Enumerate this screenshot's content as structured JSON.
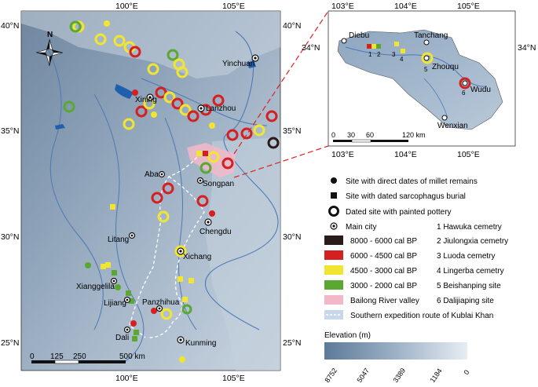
{
  "main_map": {
    "lon_ticks": [
      "100°E",
      "105°E"
    ],
    "lat_ticks": [
      "40°N",
      "35°N",
      "30°N",
      "25°N"
    ],
    "cities": [
      "Yinchuan",
      "Xining",
      "Lanzhou",
      "Aba",
      "Songpan",
      "Litang",
      "Chengdu",
      "Xichang",
      "Xianggelila",
      "Lijiang",
      "Panzhihua",
      "Dali",
      "Kunming"
    ],
    "scale_bar": {
      "labels": [
        "0",
        "125",
        "250",
        "500 km"
      ]
    },
    "north_arrow": "N"
  },
  "inset_map": {
    "lon_ticks": [
      "103°E",
      "104°E",
      "105°E"
    ],
    "lat_ticks": [
      "34°N"
    ],
    "cities": [
      "Diebu",
      "Tanchang",
      "Zhouqu",
      "Wudu",
      "Wenxian"
    ],
    "site_numbers": [
      "1",
      "2",
      "3",
      "4",
      "5",
      "6"
    ],
    "scale_bar": {
      "labels": [
        "0",
        "30",
        "60",
        "120 km"
      ]
    }
  },
  "legend": {
    "symbols": [
      {
        "shape": "dot",
        "label": "Site with direct dates of millet remains"
      },
      {
        "shape": "square",
        "label": "Site with dated sarcophagus burial"
      },
      {
        "shape": "ring",
        "label": "Dated site with painted pottery"
      },
      {
        "shape": "main-city",
        "label": "Main city"
      }
    ],
    "periods": [
      {
        "label": "8000 - 6000 cal BP",
        "color": "#2a1a1a"
      },
      {
        "label": "6000 - 4500 cal BP",
        "color": "#d42020"
      },
      {
        "label": "4500 - 3000 cal BP",
        "color": "#f2e531"
      },
      {
        "label": "3000 - 2000 cal BP",
        "color": "#5aa832"
      },
      {
        "label": "Bailong River valley",
        "color": "#f2b8c8"
      },
      {
        "label": "Southern expedition route of Kublai Khan",
        "color": "#c8d8ea"
      }
    ],
    "cemeteries": [
      "1   Hawuka cemetry",
      "2   Jiulongxia cemetry",
      "3   Luoda cemetry",
      "4   Lingerba cemetry",
      "5   Beishanping site",
      "6   Dalijiaping site"
    ],
    "elevation": {
      "title": "Elevation (m)",
      "ticks": [
        "8752",
        "5047",
        "3389",
        "1184",
        "0"
      ]
    }
  }
}
